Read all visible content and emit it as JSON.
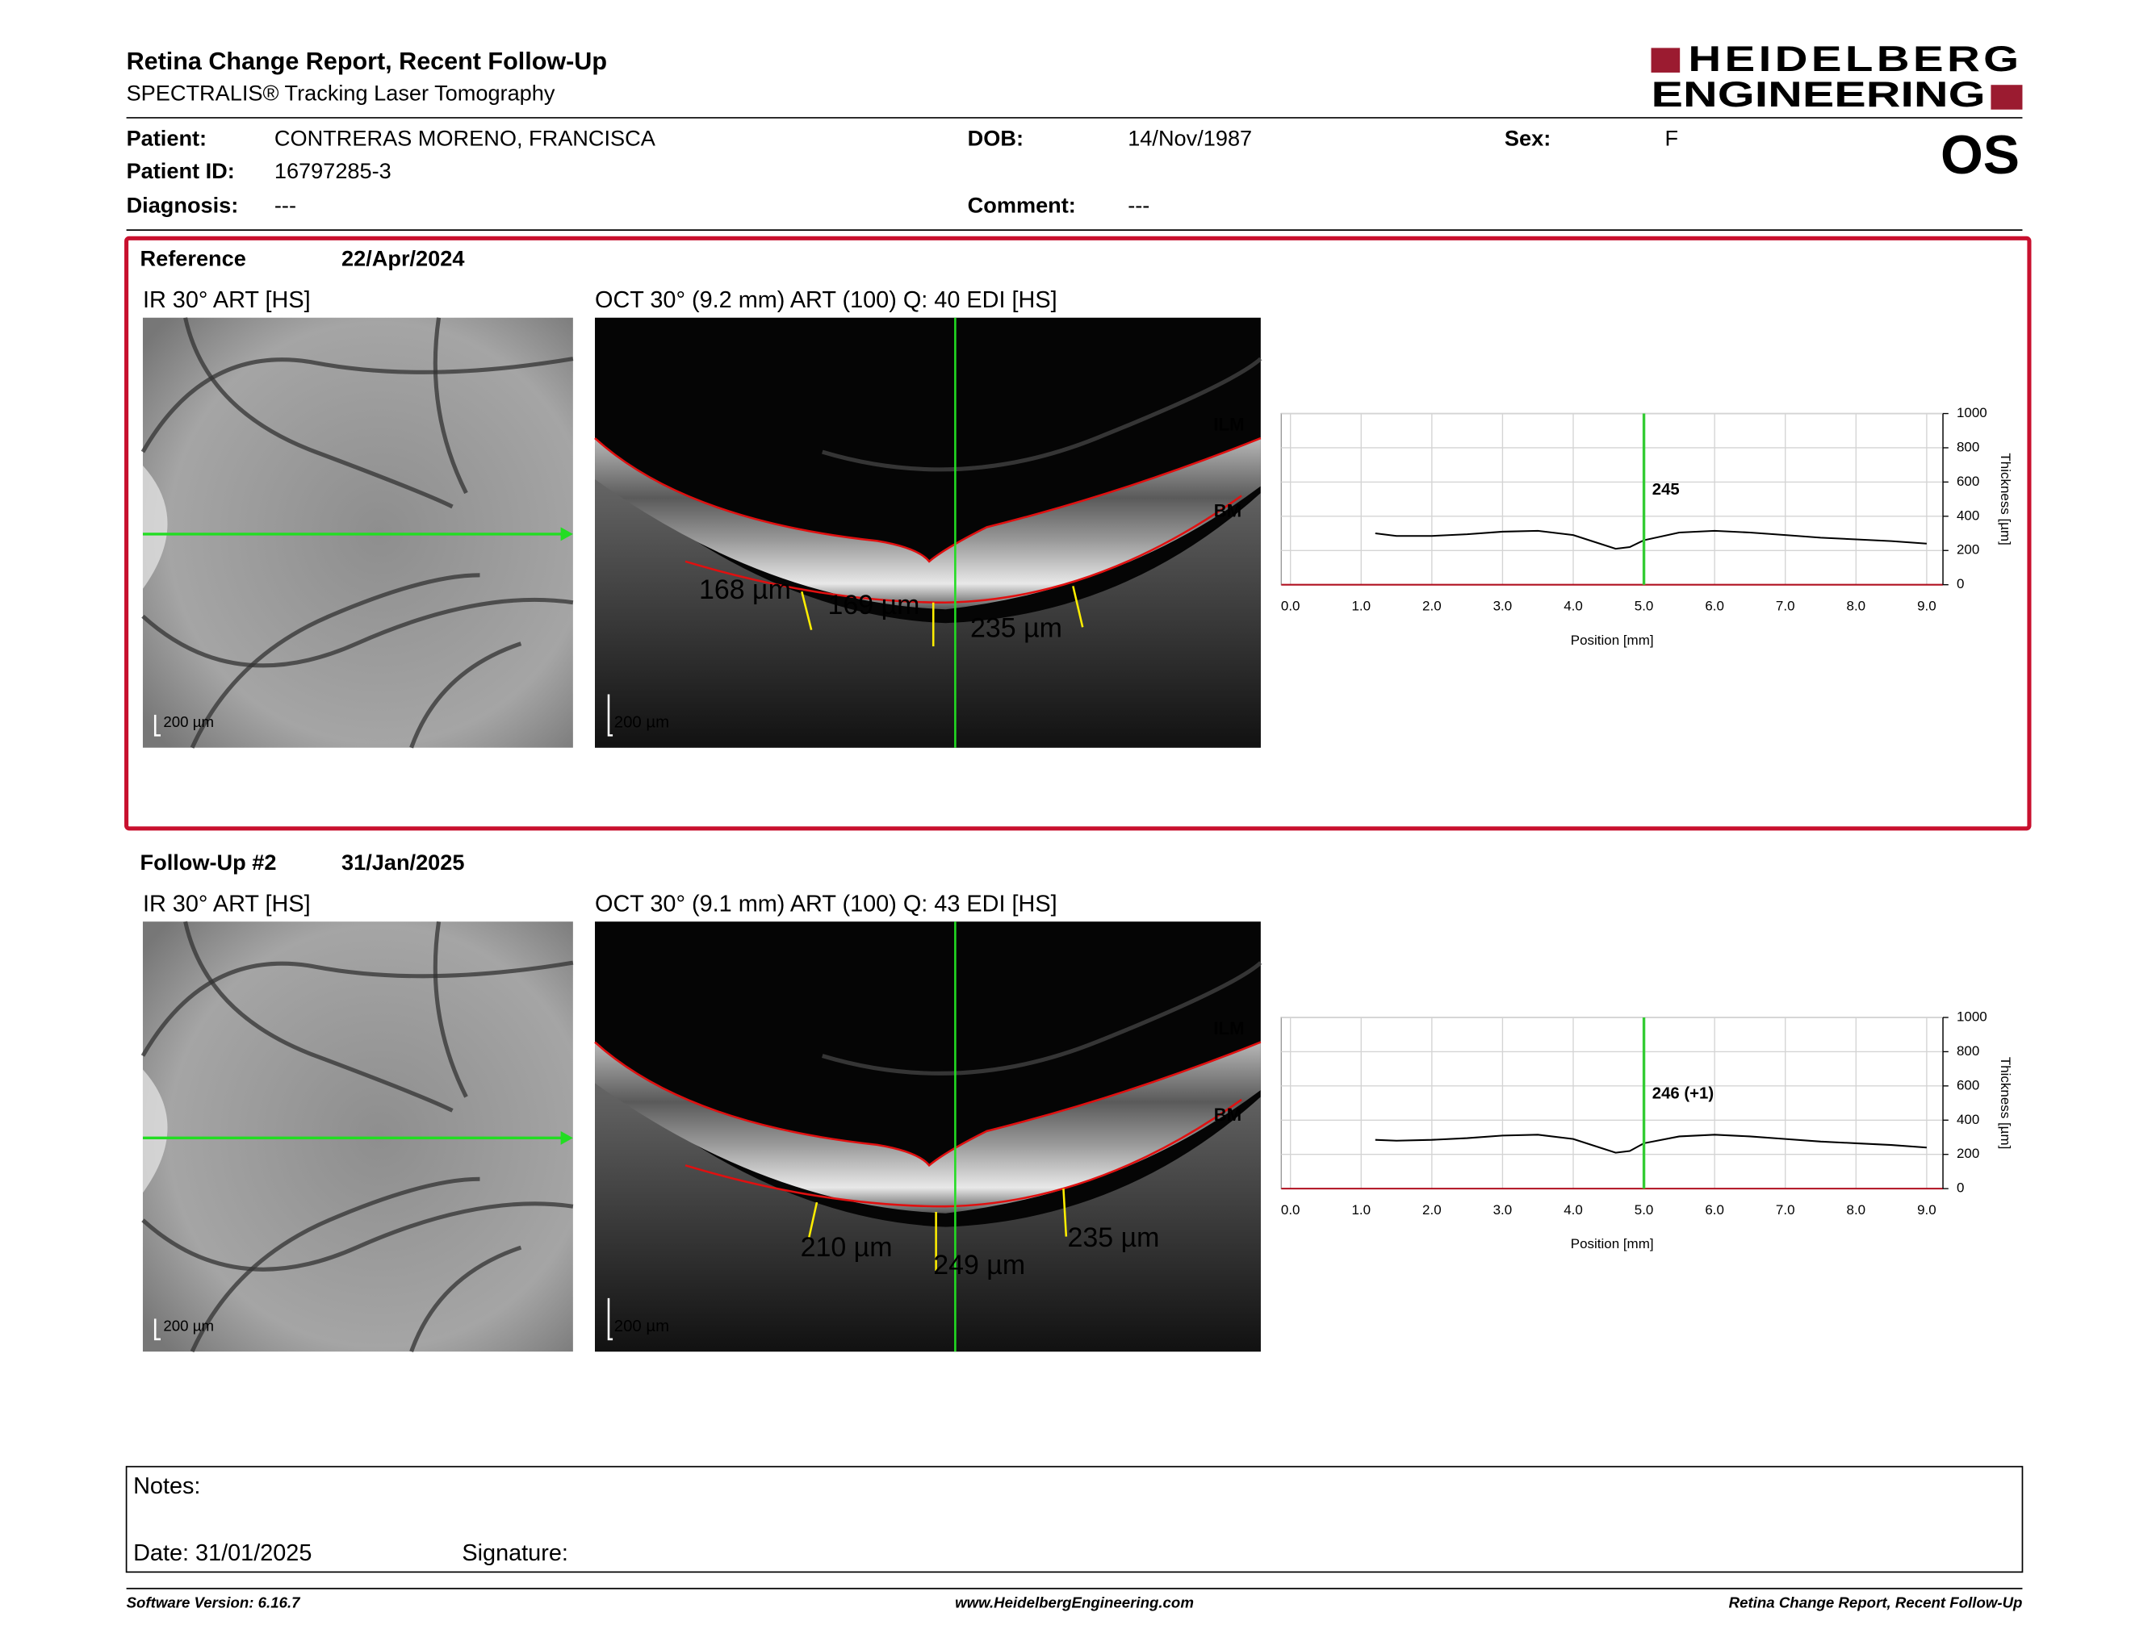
{
  "header": {
    "title": "Retina Change Report, Recent Follow-Up",
    "subtitle": "SPECTRALIS® Tracking Laser Tomography",
    "logo": [
      "HEIDELBERG",
      "ENGINEERING"
    ],
    "eye": "OS"
  },
  "patient": [
    [
      {
        "label": "Patient:",
        "value": "CONTRERAS MORENO, FRANCISCA"
      },
      {
        "label": "DOB:",
        "value": "14/Nov/1987"
      },
      {
        "label": "Sex:",
        "value": "F"
      }
    ],
    [
      {
        "label": "Patient ID:",
        "value": "16797285-3"
      }
    ],
    [
      {
        "label": "Diagnosis:",
        "value": "---"
      },
      {
        "label": "Comment:",
        "value": "---"
      }
    ]
  ],
  "exams": [
    {
      "label": "Reference",
      "date": "22/Apr/2024",
      "ir_title": "IR 30° ART [HS]",
      "oct_title": "OCT 30° (9.2 mm) ART (100) Q: 40 EDI [HS]",
      "scale_bar": "200 µm",
      "layer_labels": [
        "ILM",
        "BM"
      ],
      "measurements": [
        "168 µm",
        "169 µm",
        "235 µm"
      ],
      "chart": {
        "type": "line",
        "xlabel": "Position [mm]",
        "ylabel": "Thickness [µm]",
        "xlim": [
          -0.13,
          9.23
        ],
        "ylim": [
          0,
          1000
        ],
        "xticks": [
          {
            "value": 0,
            "label": "0.0"
          },
          {
            "value": 1,
            "label": "1.0"
          },
          {
            "value": 2,
            "label": "2.0"
          },
          {
            "value": 3,
            "label": "3.0"
          },
          {
            "value": 4,
            "label": "4.0"
          },
          {
            "value": 5,
            "label": "5.0"
          },
          {
            "value": 6,
            "label": "6.0"
          },
          {
            "value": 7,
            "label": "7.0"
          },
          {
            "value": 8,
            "label": "8.0"
          },
          {
            "value": 9,
            "label": "9.0"
          }
        ],
        "yticks": [
          0,
          200,
          400,
          600,
          800,
          1000
        ],
        "grid": true,
        "x": [
          1.2,
          1.5,
          2.0,
          2.5,
          3.0,
          3.5,
          4.0,
          4.3,
          4.6,
          4.8,
          5.0,
          5.5,
          6.0,
          6.5,
          7.0,
          7.5,
          8.0,
          8.5,
          9.0
        ],
        "values": [
          300,
          285,
          285,
          295,
          310,
          315,
          290,
          250,
          210,
          220,
          260,
          305,
          315,
          305,
          290,
          275,
          265,
          255,
          240
        ],
        "color": "#000000",
        "marker": {
          "x": 5.0,
          "value": 245,
          "color": "#33cc33"
        }
      }
    },
    {
      "label": "Follow-Up #2",
      "date": "31/Jan/2025",
      "ir_title": "IR 30° ART [HS]",
      "oct_title": "OCT 30° (9.1 mm) ART (100) Q: 43 EDI [HS]",
      "scale_bar": "200 µm",
      "layer_labels": [
        "ILM",
        "BM"
      ],
      "measurements": [
        "210 µm",
        "249 µm",
        "235 µm"
      ],
      "chart": {
        "type": "line",
        "xlabel": "Position [mm]",
        "ylabel": "Thickness [µm]",
        "xlim": [
          -0.13,
          9.23
        ],
        "ylim": [
          0,
          1000
        ],
        "xticks": [
          {
            "value": 0,
            "label": "0.0"
          },
          {
            "value": 1,
            "label": "1.0"
          },
          {
            "value": 2,
            "label": "2.0"
          },
          {
            "value": 3,
            "label": "3.0"
          },
          {
            "value": 4,
            "label": "4.0"
          },
          {
            "value": 5,
            "label": "5.0"
          },
          {
            "value": 6,
            "label": "6.0"
          },
          {
            "value": 7,
            "label": "7.0"
          },
          {
            "value": 8,
            "label": "8.0"
          },
          {
            "value": 9,
            "label": "9.0"
          }
        ],
        "yticks": [
          0,
          200,
          400,
          600,
          800,
          1000
        ],
        "grid": true,
        "x": [
          1.2,
          1.5,
          2.0,
          2.5,
          3.0,
          3.5,
          4.0,
          4.3,
          4.6,
          4.8,
          5.0,
          5.5,
          6.0,
          6.5,
          7.0,
          7.5,
          8.0,
          8.5,
          9.0
        ],
        "values": [
          285,
          280,
          285,
          295,
          310,
          315,
          290,
          250,
          210,
          220,
          265,
          305,
          315,
          305,
          290,
          275,
          265,
          255,
          240
        ],
        "color": "#000000",
        "marker": {
          "x": 5.0,
          "value": 246,
          "label": "246 (+1)",
          "color": "#33cc33"
        }
      }
    }
  ],
  "notes": {
    "label": "Notes:",
    "date": "Date: 31/01/2025",
    "signature": "Signature:"
  },
  "footer": {
    "left": "Software Version: 6.16.7",
    "center": "www.HeidelbergEngineering.com",
    "right": "Retina Change Report, Recent Follow-Up"
  }
}
